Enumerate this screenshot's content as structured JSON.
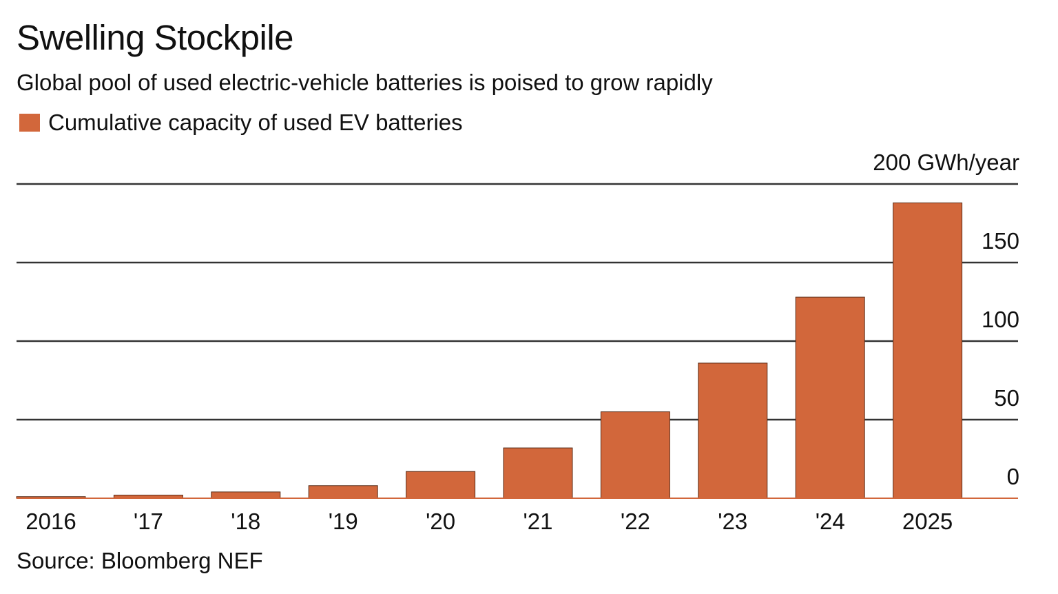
{
  "chart_data": {
    "type": "bar",
    "title": "Swelling Stockpile",
    "subtitle": "Global pool of used electric-vehicle batteries is poised to grow rapidly",
    "categories": [
      "2016",
      "'17",
      "'18",
      "'19",
      "'20",
      "'21",
      "'22",
      "'23",
      "'24",
      "2025"
    ],
    "series": [
      {
        "name": "Cumulative capacity of used EV batteries",
        "color": "#d2673b",
        "values": [
          1,
          2,
          4,
          8,
          17,
          32,
          55,
          86,
          128,
          188
        ]
      }
    ],
    "ylim": [
      0,
      200
    ],
    "yticks": [
      0,
      50,
      100,
      150,
      200
    ],
    "ytick_labels": [
      "0",
      "50",
      "100",
      "150",
      "200 GWh/year"
    ],
    "ylabel": "",
    "xlabel": "",
    "grid": true,
    "y_axis_side": "right",
    "legend_position": "top-left"
  },
  "source": "Source: Bloomberg NEF"
}
